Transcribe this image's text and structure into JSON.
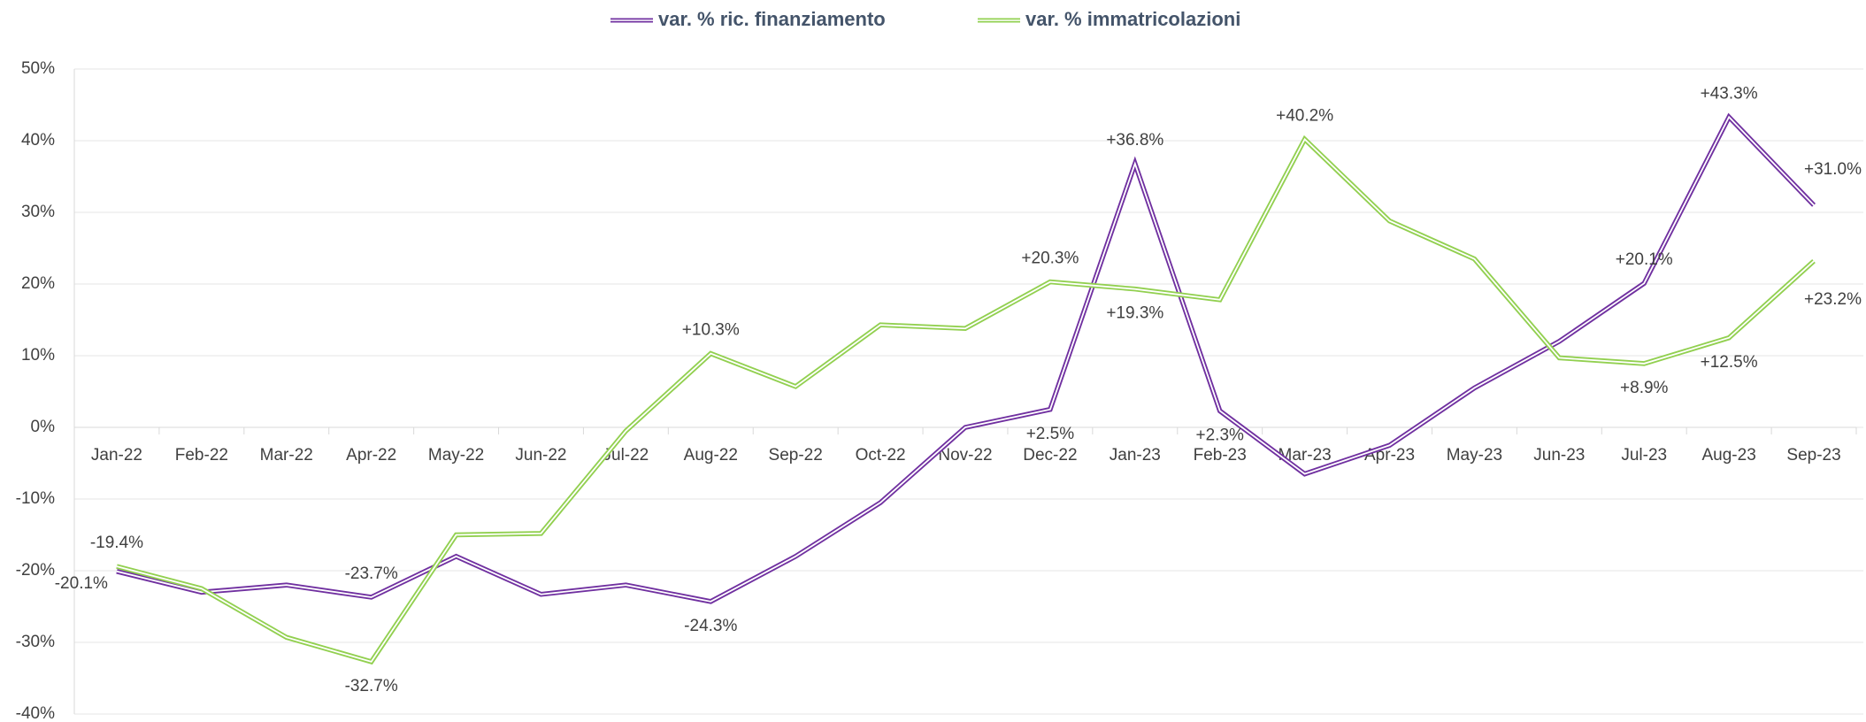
{
  "chart_data": {
    "type": "line",
    "categories": [
      "Jan-22",
      "Feb-22",
      "Mar-22",
      "Apr-22",
      "May-22",
      "Jun-22",
      "Jul-22",
      "Aug-22",
      "Sep-22",
      "Oct-22",
      "Nov-22",
      "Dec-22",
      "Jan-23",
      "Feb-23",
      "Mar-23",
      "Apr-23",
      "May-23",
      "Jun-23",
      "Jul-23",
      "Aug-23",
      "Sep-23"
    ],
    "series": [
      {
        "name": "var. % ric. finanziamento",
        "color": "#7030a0",
        "values": [
          -20.1,
          -23,
          -22,
          -23.7,
          -18,
          -23.3,
          -22,
          -24.3,
          -18,
          -10.5,
          0,
          2.5,
          36.8,
          2.3,
          -6.5,
          -2.5,
          5.5,
          12,
          20.1,
          43.3,
          31.0
        ],
        "value_labels": [
          "-20.1%",
          null,
          null,
          "-23.7%",
          null,
          null,
          null,
          "-24.3%",
          null,
          null,
          null,
          "+2.5%",
          "+36.8%",
          "+2.3%",
          null,
          null,
          null,
          null,
          "+20.1%",
          "+43.3%",
          "+31.0%"
        ]
      },
      {
        "name": "var. % immatricolazioni",
        "color": "#92d050",
        "values": [
          -19.4,
          -22.5,
          -29.3,
          -32.7,
          -15,
          -14.8,
          -0.5,
          10.3,
          5.7,
          14.3,
          13.8,
          20.3,
          19.3,
          17.8,
          40.2,
          28.8,
          23.5,
          9.7,
          8.9,
          12.5,
          23.2
        ],
        "value_labels": [
          "-19.4%",
          null,
          null,
          "-32.7%",
          null,
          null,
          null,
          "+10.3%",
          null,
          null,
          null,
          "+20.3%",
          "+19.3%",
          null,
          "+40.2%",
          null,
          null,
          null,
          "+8.9%",
          "+12.5%",
          "+23.2%"
        ]
      }
    ],
    "ylim": [
      -40,
      50
    ],
    "yticks": [
      {
        "value": -40,
        "label": "-40%"
      },
      {
        "value": -30,
        "label": "-30%"
      },
      {
        "value": -20,
        "label": "-20%"
      },
      {
        "value": -10,
        "label": "-10%"
      },
      {
        "value": 0,
        "label": "0%"
      },
      {
        "value": 10,
        "label": "10%"
      },
      {
        "value": 20,
        "label": "20%"
      },
      {
        "value": 30,
        "label": "30%"
      },
      {
        "value": 40,
        "label": "40%"
      },
      {
        "value": 50,
        "label": "50%"
      }
    ],
    "grid": true,
    "legend": "top"
  }
}
